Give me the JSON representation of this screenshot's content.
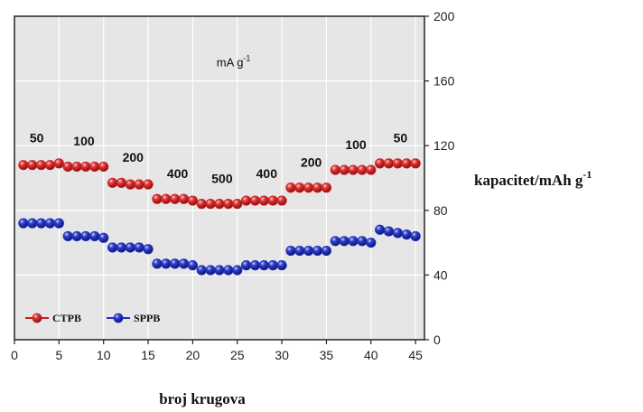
{
  "chart_data": {
    "type": "scatter",
    "xlabel": "broj krugova",
    "ylabel": "kapacitet/mAh g",
    "ylabel_superscript": "-1",
    "xlim": [
      0,
      46
    ],
    "ylim": [
      0,
      200
    ],
    "xticks": [
      0,
      5,
      10,
      15,
      20,
      25,
      30,
      35,
      40,
      45
    ],
    "yticks": [
      0,
      40,
      80,
      120,
      160,
      200
    ],
    "y_axis_side": "right",
    "grid": true,
    "legend_position": "bottom-left",
    "series": [
      {
        "name": "CTPB",
        "color": "#cc1f1f",
        "x": [
          1,
          2,
          3,
          4,
          5,
          6,
          7,
          8,
          9,
          10,
          11,
          12,
          13,
          14,
          15,
          16,
          17,
          18,
          19,
          20,
          21,
          22,
          23,
          24,
          25,
          26,
          27,
          28,
          29,
          30,
          31,
          32,
          33,
          34,
          35,
          36,
          37,
          38,
          39,
          40,
          41,
          42,
          43,
          44,
          45
        ],
        "y": [
          108,
          108,
          108,
          108,
          109,
          107,
          107,
          107,
          107,
          107,
          97,
          97,
          96,
          96,
          96,
          87,
          87,
          87,
          87,
          86,
          84,
          84,
          84,
          84,
          84,
          86,
          86,
          86,
          86,
          86,
          94,
          94,
          94,
          94,
          94,
          105,
          105,
          105,
          105,
          105,
          109,
          109,
          109,
          109,
          109
        ]
      },
      {
        "name": "SPPB",
        "color": "#1f2fb8",
        "x": [
          1,
          2,
          3,
          4,
          5,
          6,
          7,
          8,
          9,
          10,
          11,
          12,
          13,
          14,
          15,
          16,
          17,
          18,
          19,
          20,
          21,
          22,
          23,
          24,
          25,
          26,
          27,
          28,
          29,
          30,
          31,
          32,
          33,
          34,
          35,
          36,
          37,
          38,
          39,
          40,
          41,
          42,
          43,
          44,
          45
        ],
        "y": [
          72,
          72,
          72,
          72,
          72,
          64,
          64,
          64,
          64,
          63,
          57,
          57,
          57,
          57,
          56,
          47,
          47,
          47,
          47,
          46,
          43,
          43,
          43,
          43,
          43,
          46,
          46,
          46,
          46,
          46,
          55,
          55,
          55,
          55,
          55,
          61,
          61,
          61,
          61,
          60,
          68,
          67,
          66,
          65,
          64
        ]
      }
    ],
    "annotations": [
      {
        "text": "50",
        "x": 2.5,
        "y": 122
      },
      {
        "text": "100",
        "x": 7.8,
        "y": 120
      },
      {
        "text": "200",
        "x": 13.3,
        "y": 110
      },
      {
        "text": "400",
        "x": 18.3,
        "y": 100
      },
      {
        "text": "500",
        "x": 23.3,
        "y": 97
      },
      {
        "text": "400",
        "x": 28.3,
        "y": 100
      },
      {
        "text": "200",
        "x": 33.3,
        "y": 107
      },
      {
        "text": "100",
        "x": 38.3,
        "y": 118
      },
      {
        "text": "50",
        "x": 43.3,
        "y": 122
      }
    ],
    "unit_annotation": {
      "text": "mA g",
      "superscript": "-1",
      "x": 24.5,
      "y": 169
    }
  }
}
